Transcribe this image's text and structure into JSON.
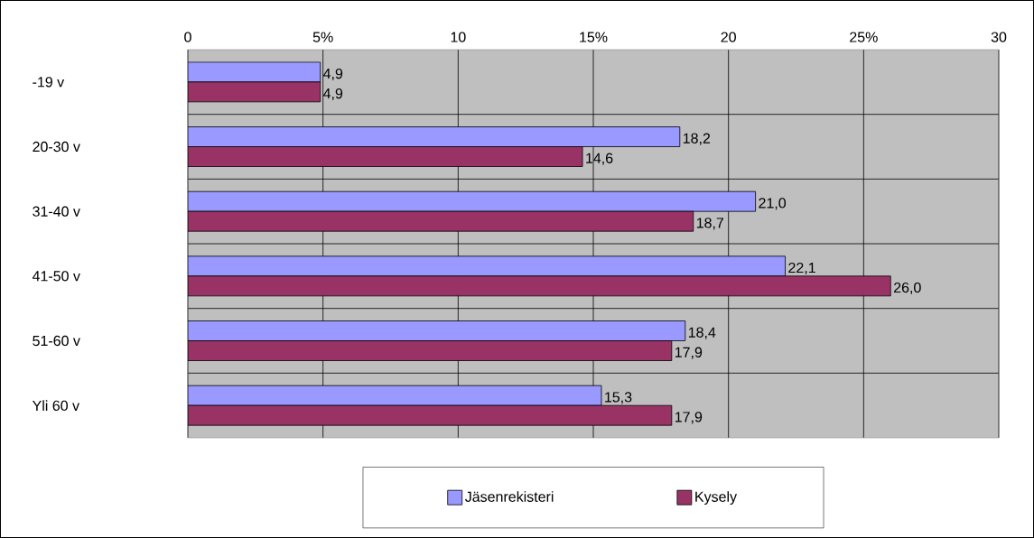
{
  "chart_data": {
    "type": "bar",
    "orientation": "horizontal",
    "categories": [
      "-19 v",
      "20-30 v",
      "31-40 v",
      "41-50 v",
      "51-60 v",
      "Yli 60 v"
    ],
    "series": [
      {
        "name": "Jäsenrekisteri",
        "color": "#9999ff",
        "values": [
          4.9,
          18.2,
          21.0,
          22.1,
          18.4,
          15.3
        ],
        "value_labels": [
          "4,9",
          "18,2",
          "21,0",
          "22,1",
          "18,4",
          "15,3"
        ]
      },
      {
        "name": "Kysely",
        "color": "#993366",
        "values": [
          4.9,
          14.6,
          18.7,
          26.0,
          17.9,
          17.9
        ],
        "value_labels": [
          "4,9",
          "14,6",
          "18,7",
          "26,0",
          "17,9",
          "17,9"
        ]
      }
    ],
    "xlim": [
      0,
      30
    ],
    "xticks": [
      0,
      {
        "value": 5,
        "label": "5%"
      },
      10,
      {
        "value": 15,
        "label": "15%"
      },
      20,
      {
        "value": 25,
        "label": "25%"
      },
      30
    ],
    "grid": true,
    "legend": "bottom"
  }
}
